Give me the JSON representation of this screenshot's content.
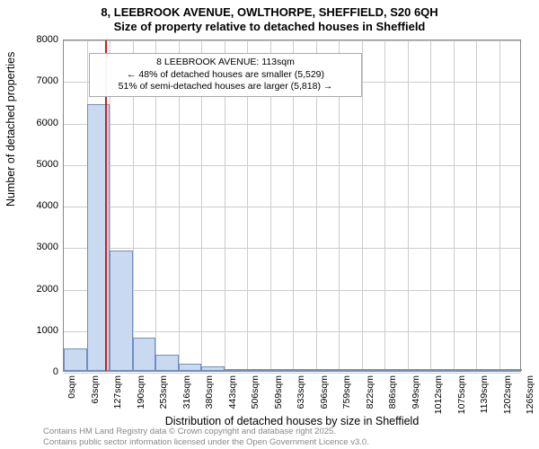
{
  "title": "8, LEEBROOK AVENUE, OWLTHORPE, SHEFFIELD, S20 6QH",
  "subtitle": "Size of property relative to detached houses in Sheffield",
  "yaxis_label": "Number of detached properties",
  "xaxis_label": "Distribution of detached houses by size in Sheffield",
  "footer_line1": "Contains HM Land Registry data © Crown copyright and database right 2025.",
  "footer_line2": "Contains public sector information licensed under the Open Government Licence v3.0.",
  "histogram": {
    "type": "histogram",
    "ylim": [
      0,
      8000
    ],
    "ytick_step": 1000,
    "yticks": [
      0,
      1000,
      2000,
      3000,
      4000,
      5000,
      6000,
      7000,
      8000
    ],
    "xtick_labels": [
      "0sqm",
      "63sqm",
      "127sqm",
      "190sqm",
      "253sqm",
      "316sqm",
      "380sqm",
      "443sqm",
      "506sqm",
      "569sqm",
      "633sqm",
      "696sqm",
      "759sqm",
      "822sqm",
      "886sqm",
      "949sqm",
      "1012sqm",
      "1075sqm",
      "1139sqm",
      "1202sqm",
      "1265sqm"
    ],
    "bar_values": [
      540,
      6430,
      2900,
      800,
      400,
      180,
      100,
      50,
      30,
      20,
      15,
      10,
      10,
      5,
      5,
      5,
      5,
      5,
      5,
      5
    ],
    "bar_fill": "#c8d9f0",
    "bar_border": "#7090c0",
    "reference_line": {
      "value_sqm": 113,
      "color": "#d02020"
    },
    "grid_color": "#cccccc",
    "axis_color": "#888888",
    "background_color": "#ffffff",
    "font_family": "Arial",
    "title_fontsize": 13,
    "label_fontsize": 12.5,
    "tick_fontsize": 11
  },
  "annotation": {
    "line1": "8 LEEBROOK AVENUE: 113sqm",
    "line2": "← 48% of detached houses are smaller (5,529)",
    "line3": "51% of semi-detached houses are larger (5,818) →",
    "border_color": "#aaaaaa",
    "background_color": "#ffffff",
    "fontsize": 10.5
  }
}
